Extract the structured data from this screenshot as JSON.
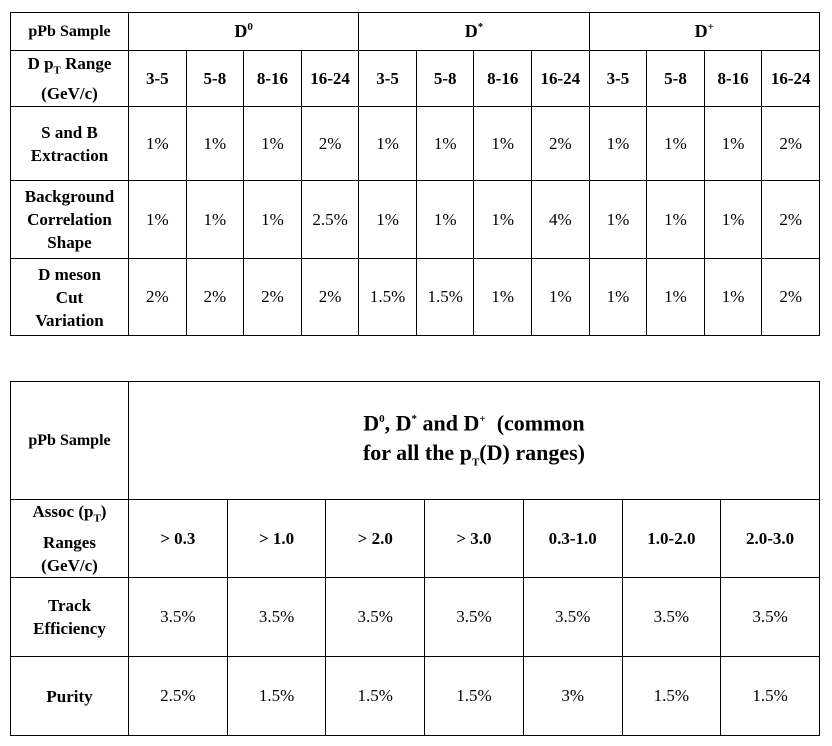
{
  "table1": {
    "corner": "pPb Sample",
    "mesons": [
      {
        "base": "D",
        "sup": "0"
      },
      {
        "base": "D",
        "sup": "*"
      },
      {
        "base": "D",
        "sup": "+"
      }
    ],
    "range_label": {
      "a": "D p",
      "sub": "T",
      "b": " Range",
      "c": "(GeV/c)"
    },
    "bins": [
      "3-5",
      "5-8",
      "8-16",
      "16-24",
      "3-5",
      "5-8",
      "8-16",
      "16-24",
      "3-5",
      "5-8",
      "8-16",
      "16-24"
    ],
    "rows": [
      {
        "label_lines": [
          "S and B",
          "Extraction"
        ],
        "values": [
          "1%",
          "1%",
          "1%",
          "2%",
          "1%",
          "1%",
          "1%",
          "2%",
          "1%",
          "1%",
          "1%",
          "2%"
        ]
      },
      {
        "label_lines": [
          "Background",
          "Correlation",
          "Shape"
        ],
        "values": [
          "1%",
          "1%",
          "1%",
          "2.5%",
          "1%",
          "1%",
          "1%",
          "4%",
          "1%",
          "1%",
          "1%",
          "2%"
        ]
      },
      {
        "label_lines": [
          "D meson",
          "Cut",
          "Variation"
        ],
        "values": [
          "2%",
          "2%",
          "2%",
          "2%",
          "1.5%",
          "1.5%",
          "1%",
          "1%",
          "1%",
          "1%",
          "1%",
          "2%"
        ]
      }
    ]
  },
  "table2": {
    "corner": "pPb Sample",
    "title": {
      "d": "D",
      "sup0": "0",
      "sep1": ", ",
      "d2": "D",
      "sup_star": "*",
      "and": " and ",
      "d3": "D",
      "sup_plus": "+",
      "rest": "  (common",
      "line2a": "for all the p",
      "line2sub": "T",
      "line2b": "(D) ranges)"
    },
    "assoc_label": {
      "a": "Assoc (p",
      "sub": "T",
      "b": ")",
      "c": "Ranges",
      "d": "(GeV/c)"
    },
    "bins": [
      "> 0.3",
      "> 1.0",
      "> 2.0",
      "> 3.0",
      "0.3-1.0",
      "1.0-2.0",
      "2.0-3.0"
    ],
    "rows": [
      {
        "label_lines": [
          "Track",
          "Efficiency"
        ],
        "values": [
          "3.5%",
          "3.5%",
          "3.5%",
          "3.5%",
          "3.5%",
          "3.5%",
          "3.5%"
        ]
      },
      {
        "label_lines": [
          "Purity"
        ],
        "values": [
          "2.5%",
          "1.5%",
          "1.5%",
          "1.5%",
          "3%",
          "1.5%",
          "1.5%"
        ]
      }
    ]
  }
}
